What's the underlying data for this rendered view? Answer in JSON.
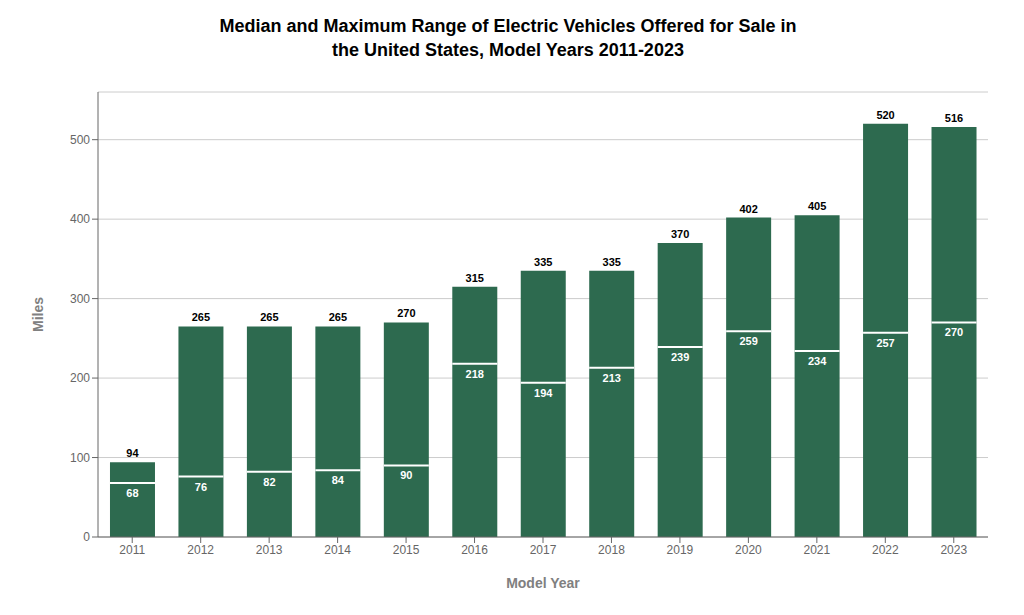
{
  "chart_data": {
    "type": "bar",
    "title": "Median and Maximum Range of Electric Vehicles Offered for Sale in\nthe United States, Model Years 2011-2023",
    "xlabel": "Model Year",
    "ylabel": "Miles",
    "categories": [
      "2011",
      "2012",
      "2013",
      "2014",
      "2015",
      "2016",
      "2017",
      "2018",
      "2019",
      "2020",
      "2021",
      "2022",
      "2023"
    ],
    "values": [
      94,
      265,
      265,
      265,
      270,
      315,
      335,
      335,
      370,
      402,
      405,
      520,
      516
    ],
    "medians": [
      68,
      76,
      82,
      84,
      90,
      218,
      194,
      213,
      239,
      259,
      234,
      257,
      270
    ],
    "color": "#2d6a4f",
    "ylim": [
      0,
      560
    ],
    "yticks": [
      0,
      100,
      200,
      300,
      400,
      500
    ],
    "grid": true,
    "data_labels": true
  }
}
